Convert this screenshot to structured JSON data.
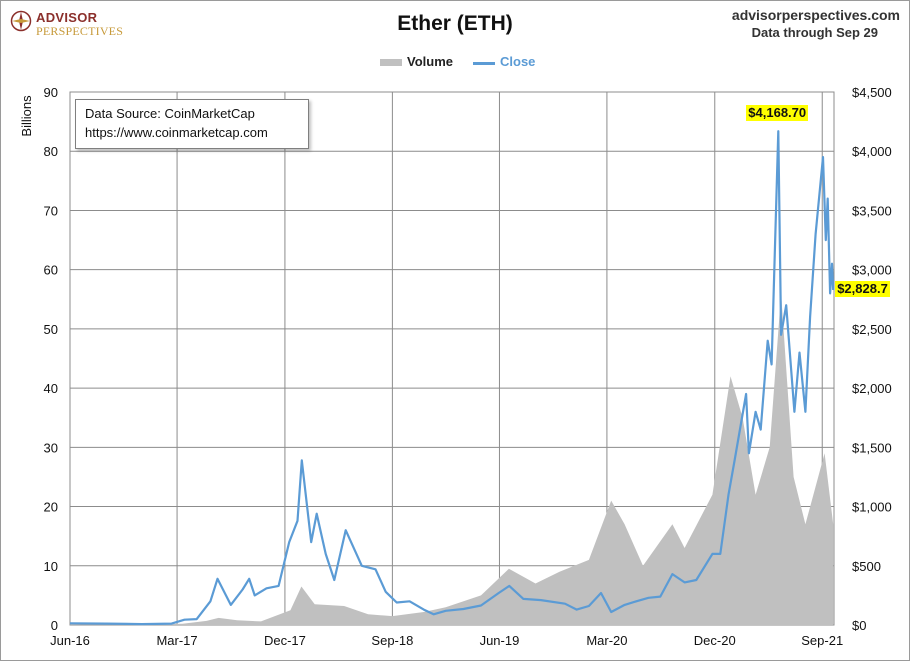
{
  "header": {
    "logo_line1": "ADVISOR",
    "logo_line2": "PERSPECTIVES",
    "title": "Ether (ETH)",
    "site": "advisorperspectives.com",
    "data_through": "Data through Sep 29"
  },
  "source": {
    "line1": "Data Source: CoinMarketCap",
    "line2": "https://www.coinmarketcap.com"
  },
  "colors": {
    "volume": "#c0c0c0",
    "close": "#5b9bd5",
    "callout": "#ffff00",
    "grid": "#8c8c8c",
    "logo_red": "#8b2f2b",
    "logo_gold": "#c79a3a"
  },
  "chart_data": {
    "type": "line",
    "title": "Ether (ETH)",
    "legend": [
      "Volume",
      "Close"
    ],
    "legend_position": "top-center",
    "grid": true,
    "left_axis": {
      "label": "Billions",
      "range": [
        0,
        90
      ],
      "ticks": [
        "0",
        "10",
        "20",
        "30",
        "40",
        "50",
        "60",
        "70",
        "80",
        "90"
      ]
    },
    "right_axis": {
      "range": [
        0,
        4500
      ],
      "ticks": [
        "$0",
        "$500",
        "$1,000",
        "$1,500",
        "$2,000",
        "$2,500",
        "$3,000",
        "$3,500",
        "$4,000",
        "$4,500"
      ]
    },
    "x_axis": {
      "range": [
        "2016-06",
        "2021-10"
      ],
      "ticks": [
        "Jun-16",
        "Mar-17",
        "Dec-17",
        "Sep-18",
        "Jun-19",
        "Mar-20",
        "Dec-20",
        "Sep-21"
      ]
    },
    "series": [
      {
        "name": "Volume",
        "axis": "left",
        "style": "area",
        "points": [
          [
            "2016-06-01",
            0.03
          ],
          [
            "2016-12-01",
            0.03
          ],
          [
            "2017-03-15",
            0.2
          ],
          [
            "2017-05-15",
            0.7
          ],
          [
            "2017-06-15",
            1.2
          ],
          [
            "2017-08-01",
            0.8
          ],
          [
            "2017-10-01",
            0.6
          ],
          [
            "2017-12-15",
            2.5
          ],
          [
            "2018-01-12",
            6.5
          ],
          [
            "2018-02-15",
            3.5
          ],
          [
            "2018-05-01",
            3.2
          ],
          [
            "2018-07-01",
            1.8
          ],
          [
            "2018-09-01",
            1.5
          ],
          [
            "2018-11-20",
            2.2
          ],
          [
            "2019-01-15",
            3.0
          ],
          [
            "2019-04-15",
            5.0
          ],
          [
            "2019-06-25",
            9.5
          ],
          [
            "2019-09-01",
            7.0
          ],
          [
            "2019-11-01",
            9.0
          ],
          [
            "2020-01-15",
            11.0
          ],
          [
            "2020-03-12",
            21.0
          ],
          [
            "2020-04-15",
            17.0
          ],
          [
            "2020-06-01",
            10.0
          ],
          [
            "2020-08-15",
            17.0
          ],
          [
            "2020-09-15",
            13.0
          ],
          [
            "2020-11-25",
            22.0
          ],
          [
            "2021-01-10",
            42.0
          ],
          [
            "2021-02-10",
            35.0
          ],
          [
            "2021-03-15",
            22.0
          ],
          [
            "2021-04-20",
            30.0
          ],
          [
            "2021-05-19",
            56.0
          ],
          [
            "2021-06-20",
            25.0
          ],
          [
            "2021-07-20",
            17.0
          ],
          [
            "2021-09-07",
            29.0
          ],
          [
            "2021-09-29",
            17.0
          ]
        ]
      },
      {
        "name": "Close",
        "axis": "right",
        "style": "line",
        "points": [
          [
            "2016-06-01",
            14
          ],
          [
            "2016-09-01",
            12
          ],
          [
            "2016-12-01",
            8
          ],
          [
            "2017-02-15",
            12
          ],
          [
            "2017-03-20",
            45
          ],
          [
            "2017-04-20",
            50
          ],
          [
            "2017-05-25",
            200
          ],
          [
            "2017-06-12",
            390
          ],
          [
            "2017-07-16",
            170
          ],
          [
            "2017-08-15",
            300
          ],
          [
            "2017-09-01",
            390
          ],
          [
            "2017-09-15",
            250
          ],
          [
            "2017-10-15",
            310
          ],
          [
            "2017-11-15",
            330
          ],
          [
            "2017-12-12",
            700
          ],
          [
            "2018-01-02",
            880
          ],
          [
            "2018-01-13",
            1390
          ],
          [
            "2018-02-06",
            700
          ],
          [
            "2018-02-20",
            940
          ],
          [
            "2018-03-15",
            600
          ],
          [
            "2018-04-06",
            380
          ],
          [
            "2018-05-05",
            800
          ],
          [
            "2018-06-15",
            500
          ],
          [
            "2018-07-20",
            470
          ],
          [
            "2018-08-15",
            280
          ],
          [
            "2018-09-12",
            190
          ],
          [
            "2018-10-15",
            200
          ],
          [
            "2018-11-20",
            130
          ],
          [
            "2018-12-15",
            90
          ],
          [
            "2019-01-15",
            120
          ],
          [
            "2019-03-01",
            135
          ],
          [
            "2019-04-15",
            165
          ],
          [
            "2019-05-30",
            270
          ],
          [
            "2019-06-26",
            330
          ],
          [
            "2019-08-01",
            220
          ],
          [
            "2019-09-15",
            210
          ],
          [
            "2019-11-15",
            180
          ],
          [
            "2019-12-15",
            130
          ],
          [
            "2020-01-15",
            160
          ],
          [
            "2020-02-15",
            270
          ],
          [
            "2020-03-12",
            110
          ],
          [
            "2020-04-15",
            170
          ],
          [
            "2020-05-15",
            200
          ],
          [
            "2020-06-15",
            230
          ],
          [
            "2020-07-15",
            240
          ],
          [
            "2020-08-15",
            430
          ],
          [
            "2020-09-15",
            360
          ],
          [
            "2020-10-15",
            380
          ],
          [
            "2020-11-25",
            600
          ],
          [
            "2020-12-15",
            600
          ],
          [
            "2021-01-05",
            1100
          ],
          [
            "2021-01-20",
            1380
          ],
          [
            "2021-02-19",
            1950
          ],
          [
            "2021-02-26",
            1450
          ],
          [
            "2021-03-15",
            1800
          ],
          [
            "2021-03-28",
            1650
          ],
          [
            "2021-04-15",
            2400
          ],
          [
            "2021-04-25",
            2200
          ],
          [
            "2021-05-12",
            4168.7
          ],
          [
            "2021-05-19",
            2450
          ],
          [
            "2021-06-01",
            2700
          ],
          [
            "2021-06-22",
            1800
          ],
          [
            "2021-07-05",
            2300
          ],
          [
            "2021-07-20",
            1800
          ],
          [
            "2021-08-01",
            2600
          ],
          [
            "2021-08-15",
            3300
          ],
          [
            "2021-09-03",
            3950
          ],
          [
            "2021-09-10",
            3250
          ],
          [
            "2021-09-15",
            3600
          ],
          [
            "2021-09-21",
            2800
          ],
          [
            "2021-09-26",
            3050
          ],
          [
            "2021-09-29",
            2828.7
          ]
        ]
      }
    ],
    "annotations": [
      {
        "label": "$4,168.70",
        "x": "2021-05-12",
        "y": 4168.7
      },
      {
        "label": "$2,828.7",
        "x": "2021-09-29",
        "y": 2828.7
      }
    ]
  }
}
